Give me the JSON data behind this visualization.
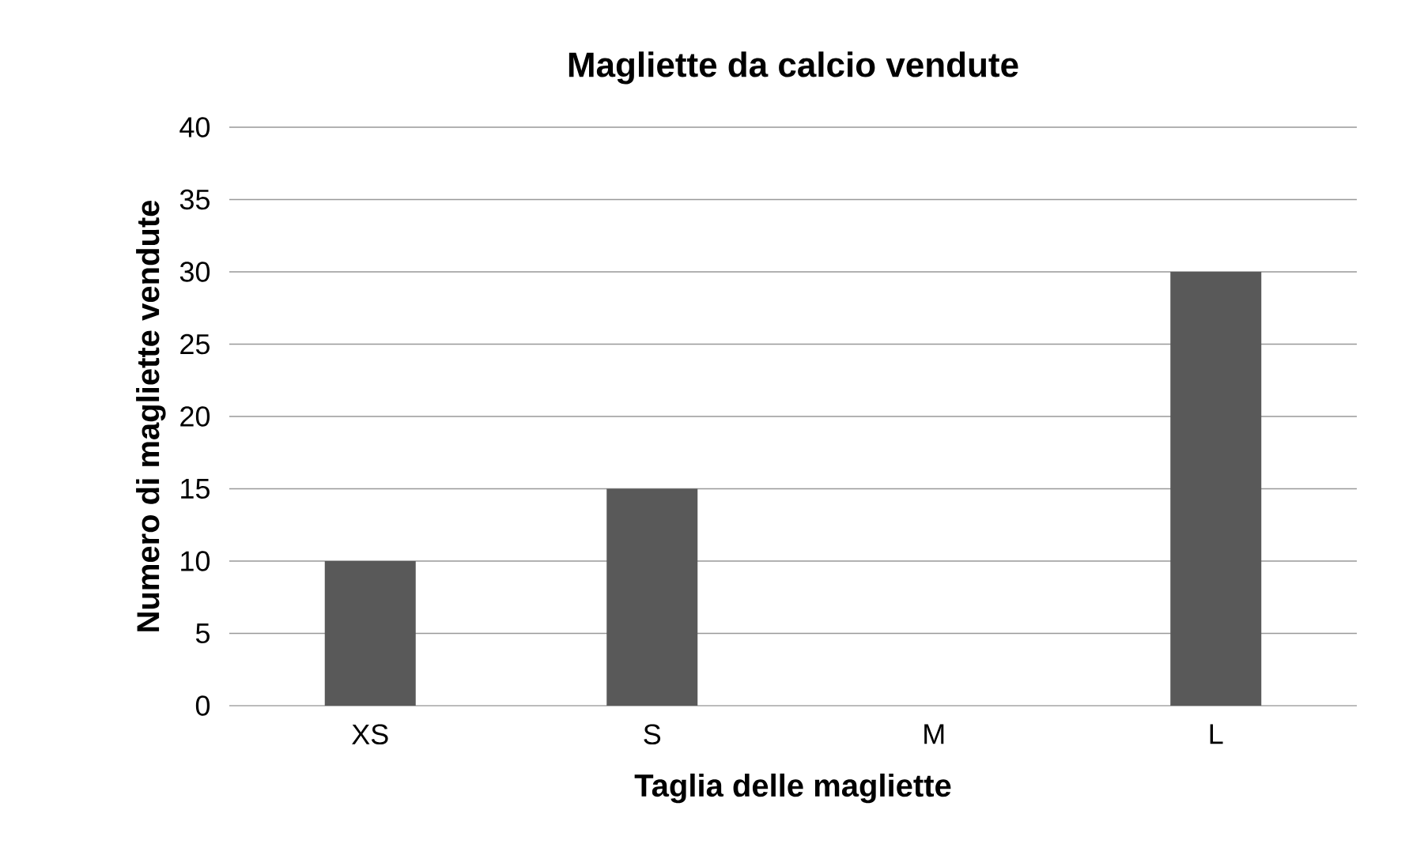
{
  "chart_data": {
    "type": "bar",
    "title": "Magliette da calcio vendute",
    "xlabel": "Taglia delle magliette",
    "ylabel": "Numero di magliette vendute",
    "categories": [
      "XS",
      "S",
      "M",
      "L"
    ],
    "values": [
      10,
      15,
      0,
      30
    ],
    "color": "#595959",
    "ylim": [
      0,
      40
    ],
    "yticks": [
      0,
      5,
      10,
      15,
      20,
      25,
      30,
      35,
      40
    ],
    "grid": "y"
  }
}
